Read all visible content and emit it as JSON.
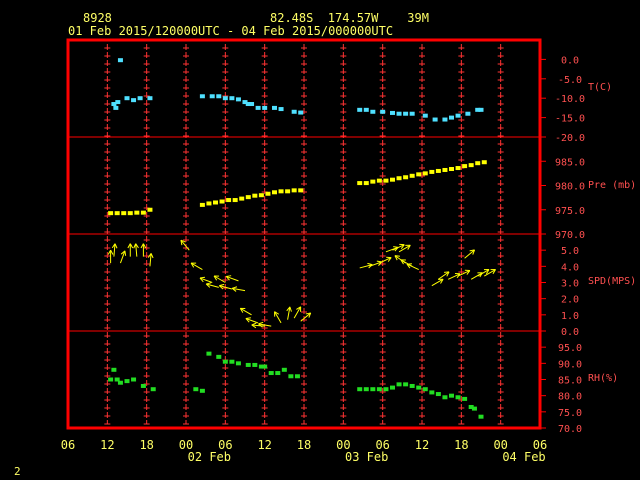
{
  "header": {
    "station": "8928",
    "location": "82.48S  174.57W    39M",
    "range": "01 Feb 2015/120000UTC - 04 Feb 2015/000000UTC"
  },
  "page_number": "2",
  "colors": {
    "frame": "#ff0000",
    "tick": "#ff3333",
    "label": "#ff5050",
    "text": "#ffff66",
    "temperature": "#4fe0ff",
    "pressure": "#ffff00",
    "wind": "#ffff00",
    "humidity": "#22dd22"
  },
  "chart_data": {
    "type": "scatter",
    "x_hours_ticks": [
      "06",
      "12",
      "18",
      "00",
      "06",
      "12",
      "18",
      "00",
      "06",
      "12",
      "18",
      "00",
      "06"
    ],
    "x_date_labels": [
      "02 Feb",
      "03 Feb",
      "04 Feb"
    ],
    "panels": [
      {
        "name": "T(C)",
        "ylim": [
          -20.0,
          5.0
        ],
        "ticks": [
          "0.0",
          "-5.0",
          "-10.0",
          "-15.0",
          "-20.0"
        ],
        "tick_values": [
          0,
          -5,
          -10,
          -15,
          -20
        ],
        "points": [
          [
            13,
            -11.5
          ],
          [
            13.3,
            -12.5
          ],
          [
            13.6,
            -11
          ],
          [
            14,
            -0.2
          ],
          [
            15,
            -10
          ],
          [
            16,
            -10.5
          ],
          [
            17,
            -10
          ],
          [
            18.5,
            -10
          ],
          [
            26.5,
            -9.5
          ],
          [
            28,
            -9.5
          ],
          [
            29,
            -9.5
          ],
          [
            30,
            -10
          ],
          [
            31,
            -10
          ],
          [
            32,
            -10.3
          ],
          [
            33,
            -11
          ],
          [
            33.5,
            -11.5
          ],
          [
            34,
            -11.5
          ],
          [
            35,
            -12.5
          ],
          [
            36,
            -12.5
          ],
          [
            37.5,
            -12.5
          ],
          [
            38.5,
            -12.8
          ],
          [
            40.5,
            -13.5
          ],
          [
            41.5,
            -13.7
          ],
          [
            50.5,
            -13
          ],
          [
            51.5,
            -13
          ],
          [
            52.5,
            -13.5
          ],
          [
            54,
            -13.5
          ],
          [
            55.5,
            -13.8
          ],
          [
            56.5,
            -14
          ],
          [
            57.5,
            -14
          ],
          [
            58.5,
            -14
          ],
          [
            60.5,
            -14.5
          ],
          [
            62,
            -15.5
          ],
          [
            63.5,
            -15.5
          ],
          [
            64.5,
            -15
          ],
          [
            65.5,
            -14.5
          ],
          [
            67,
            -14
          ],
          [
            68.5,
            -13
          ],
          [
            69,
            -13
          ]
        ]
      },
      {
        "name": "Pre (mb)",
        "ylim": [
          970.0,
          990.0
        ],
        "ticks": [
          "985.0",
          "980.0",
          "975.0",
          "970.0"
        ],
        "tick_values": [
          985,
          980,
          975,
          970
        ],
        "points": [
          [
            12.5,
            974.3
          ],
          [
            13.5,
            974.3
          ],
          [
            14.5,
            974.3
          ],
          [
            15.5,
            974.3
          ],
          [
            16.5,
            974.4
          ],
          [
            17.5,
            974.4
          ],
          [
            18.5,
            975
          ],
          [
            26.5,
            976
          ],
          [
            27.5,
            976.3
          ],
          [
            28.5,
            976.5
          ],
          [
            29.5,
            976.7
          ],
          [
            30.5,
            977
          ],
          [
            31.5,
            977
          ],
          [
            32.5,
            977.3
          ],
          [
            33.5,
            977.6
          ],
          [
            34.5,
            977.9
          ],
          [
            35.5,
            978
          ],
          [
            36.5,
            978.3
          ],
          [
            37.5,
            978.6
          ],
          [
            38.5,
            978.8
          ],
          [
            39.5,
            978.8
          ],
          [
            40.5,
            979
          ],
          [
            41.5,
            979
          ],
          [
            50.5,
            980.5
          ],
          [
            51.5,
            980.5
          ],
          [
            52.5,
            980.8
          ],
          [
            53.5,
            981
          ],
          [
            54.5,
            981
          ],
          [
            55.5,
            981.2
          ],
          [
            56.5,
            981.5
          ],
          [
            57.5,
            981.7
          ],
          [
            58.5,
            982
          ],
          [
            59.5,
            982.3
          ],
          [
            60.5,
            982.5
          ],
          [
            61.5,
            982.8
          ],
          [
            62.5,
            983
          ],
          [
            63.5,
            983.2
          ],
          [
            64.5,
            983.4
          ],
          [
            65.5,
            983.6
          ],
          [
            66.5,
            984
          ],
          [
            67.5,
            984.2
          ],
          [
            68.5,
            984.6
          ],
          [
            69.5,
            984.8
          ]
        ]
      },
      {
        "name": "SPD(MPS)",
        "ylim": [
          0.0,
          6.0
        ],
        "ticks": [
          "5.0",
          "4.0",
          "3.0",
          "2.0",
          "1.0",
          "0.0"
        ],
        "tick_values": [
          5,
          4,
          3,
          2,
          1,
          0
        ],
        "points": [
          [
            12.5,
            4.2,
            90
          ],
          [
            13,
            4.6,
            85
          ],
          [
            14,
            4.2,
            70
          ],
          [
            15.5,
            4.6,
            90
          ],
          [
            16.5,
            4.6,
            95
          ],
          [
            17.5,
            4.6,
            90
          ],
          [
            18.5,
            4.0,
            85
          ],
          [
            24.5,
            5.0,
            130
          ],
          [
            26.5,
            3.8,
            150
          ],
          [
            28,
            3.0,
            160
          ],
          [
            29,
            2.7,
            165
          ],
          [
            30,
            3.0,
            150
          ],
          [
            31,
            2.6,
            165
          ],
          [
            32,
            3.1,
            160
          ],
          [
            33,
            2.5,
            170
          ],
          [
            34,
            1.0,
            150
          ],
          [
            35,
            0.5,
            160
          ],
          [
            36,
            0.3,
            175
          ],
          [
            37,
            0.3,
            170
          ],
          [
            38.5,
            0.5,
            120
          ],
          [
            39.5,
            0.7,
            80
          ],
          [
            40.5,
            0.8,
            60
          ],
          [
            41.5,
            0.6,
            40
          ],
          [
            50.5,
            3.9,
            15
          ],
          [
            52,
            4.0,
            20
          ],
          [
            53.5,
            4.2,
            25
          ],
          [
            54.5,
            4.9,
            20
          ],
          [
            55.5,
            5.0,
            25
          ],
          [
            56.5,
            4.9,
            30
          ],
          [
            57.5,
            4.2,
            145
          ],
          [
            58.5,
            4.0,
            150
          ],
          [
            59.5,
            3.8,
            155
          ],
          [
            61.5,
            2.8,
            30
          ],
          [
            62.5,
            3.2,
            35
          ],
          [
            64,
            3.2,
            25
          ],
          [
            65.5,
            3.4,
            25
          ],
          [
            66.5,
            4.5,
            40
          ],
          [
            67.5,
            3.2,
            30
          ],
          [
            68.5,
            3.4,
            30
          ],
          [
            69.5,
            3.4,
            30
          ]
        ]
      },
      {
        "name": "RH(%)",
        "ylim": [
          70.0,
          100.0
        ],
        "ticks": [
          "95.0",
          "90.0",
          "85.0",
          "80.0",
          "75.0",
          "70.0"
        ],
        "tick_values": [
          95,
          90,
          85,
          80,
          75,
          70
        ],
        "points": [
          [
            12.5,
            85
          ],
          [
            13,
            88
          ],
          [
            13.5,
            85
          ],
          [
            14,
            84
          ],
          [
            15,
            84.5
          ],
          [
            16,
            85
          ],
          [
            17.5,
            83
          ],
          [
            19,
            82
          ],
          [
            25.5,
            82
          ],
          [
            26.5,
            81.5
          ],
          [
            27.5,
            93
          ],
          [
            29,
            92
          ],
          [
            30,
            90.5
          ],
          [
            31,
            90.5
          ],
          [
            32,
            90
          ],
          [
            33.5,
            89.5
          ],
          [
            34.5,
            89.5
          ],
          [
            35.5,
            89
          ],
          [
            36,
            89
          ],
          [
            37,
            87
          ],
          [
            38,
            87
          ],
          [
            39,
            88
          ],
          [
            40,
            86
          ],
          [
            41,
            86
          ],
          [
            50.5,
            82
          ],
          [
            51.5,
            82
          ],
          [
            52.5,
            82
          ],
          [
            53.5,
            82
          ],
          [
            54.5,
            82
          ],
          [
            55.5,
            82.5
          ],
          [
            56.5,
            83.5
          ],
          [
            57.5,
            83.5
          ],
          [
            58.5,
            83
          ],
          [
            59.5,
            82.5
          ],
          [
            60.5,
            82
          ],
          [
            61.5,
            81
          ],
          [
            62.5,
            80.5
          ],
          [
            63.5,
            79.5
          ],
          [
            64.5,
            80
          ],
          [
            65.5,
            79.5
          ],
          [
            66.5,
            79
          ],
          [
            67.5,
            76.5
          ],
          [
            68,
            76
          ],
          [
            69,
            73.5
          ]
        ]
      }
    ]
  }
}
